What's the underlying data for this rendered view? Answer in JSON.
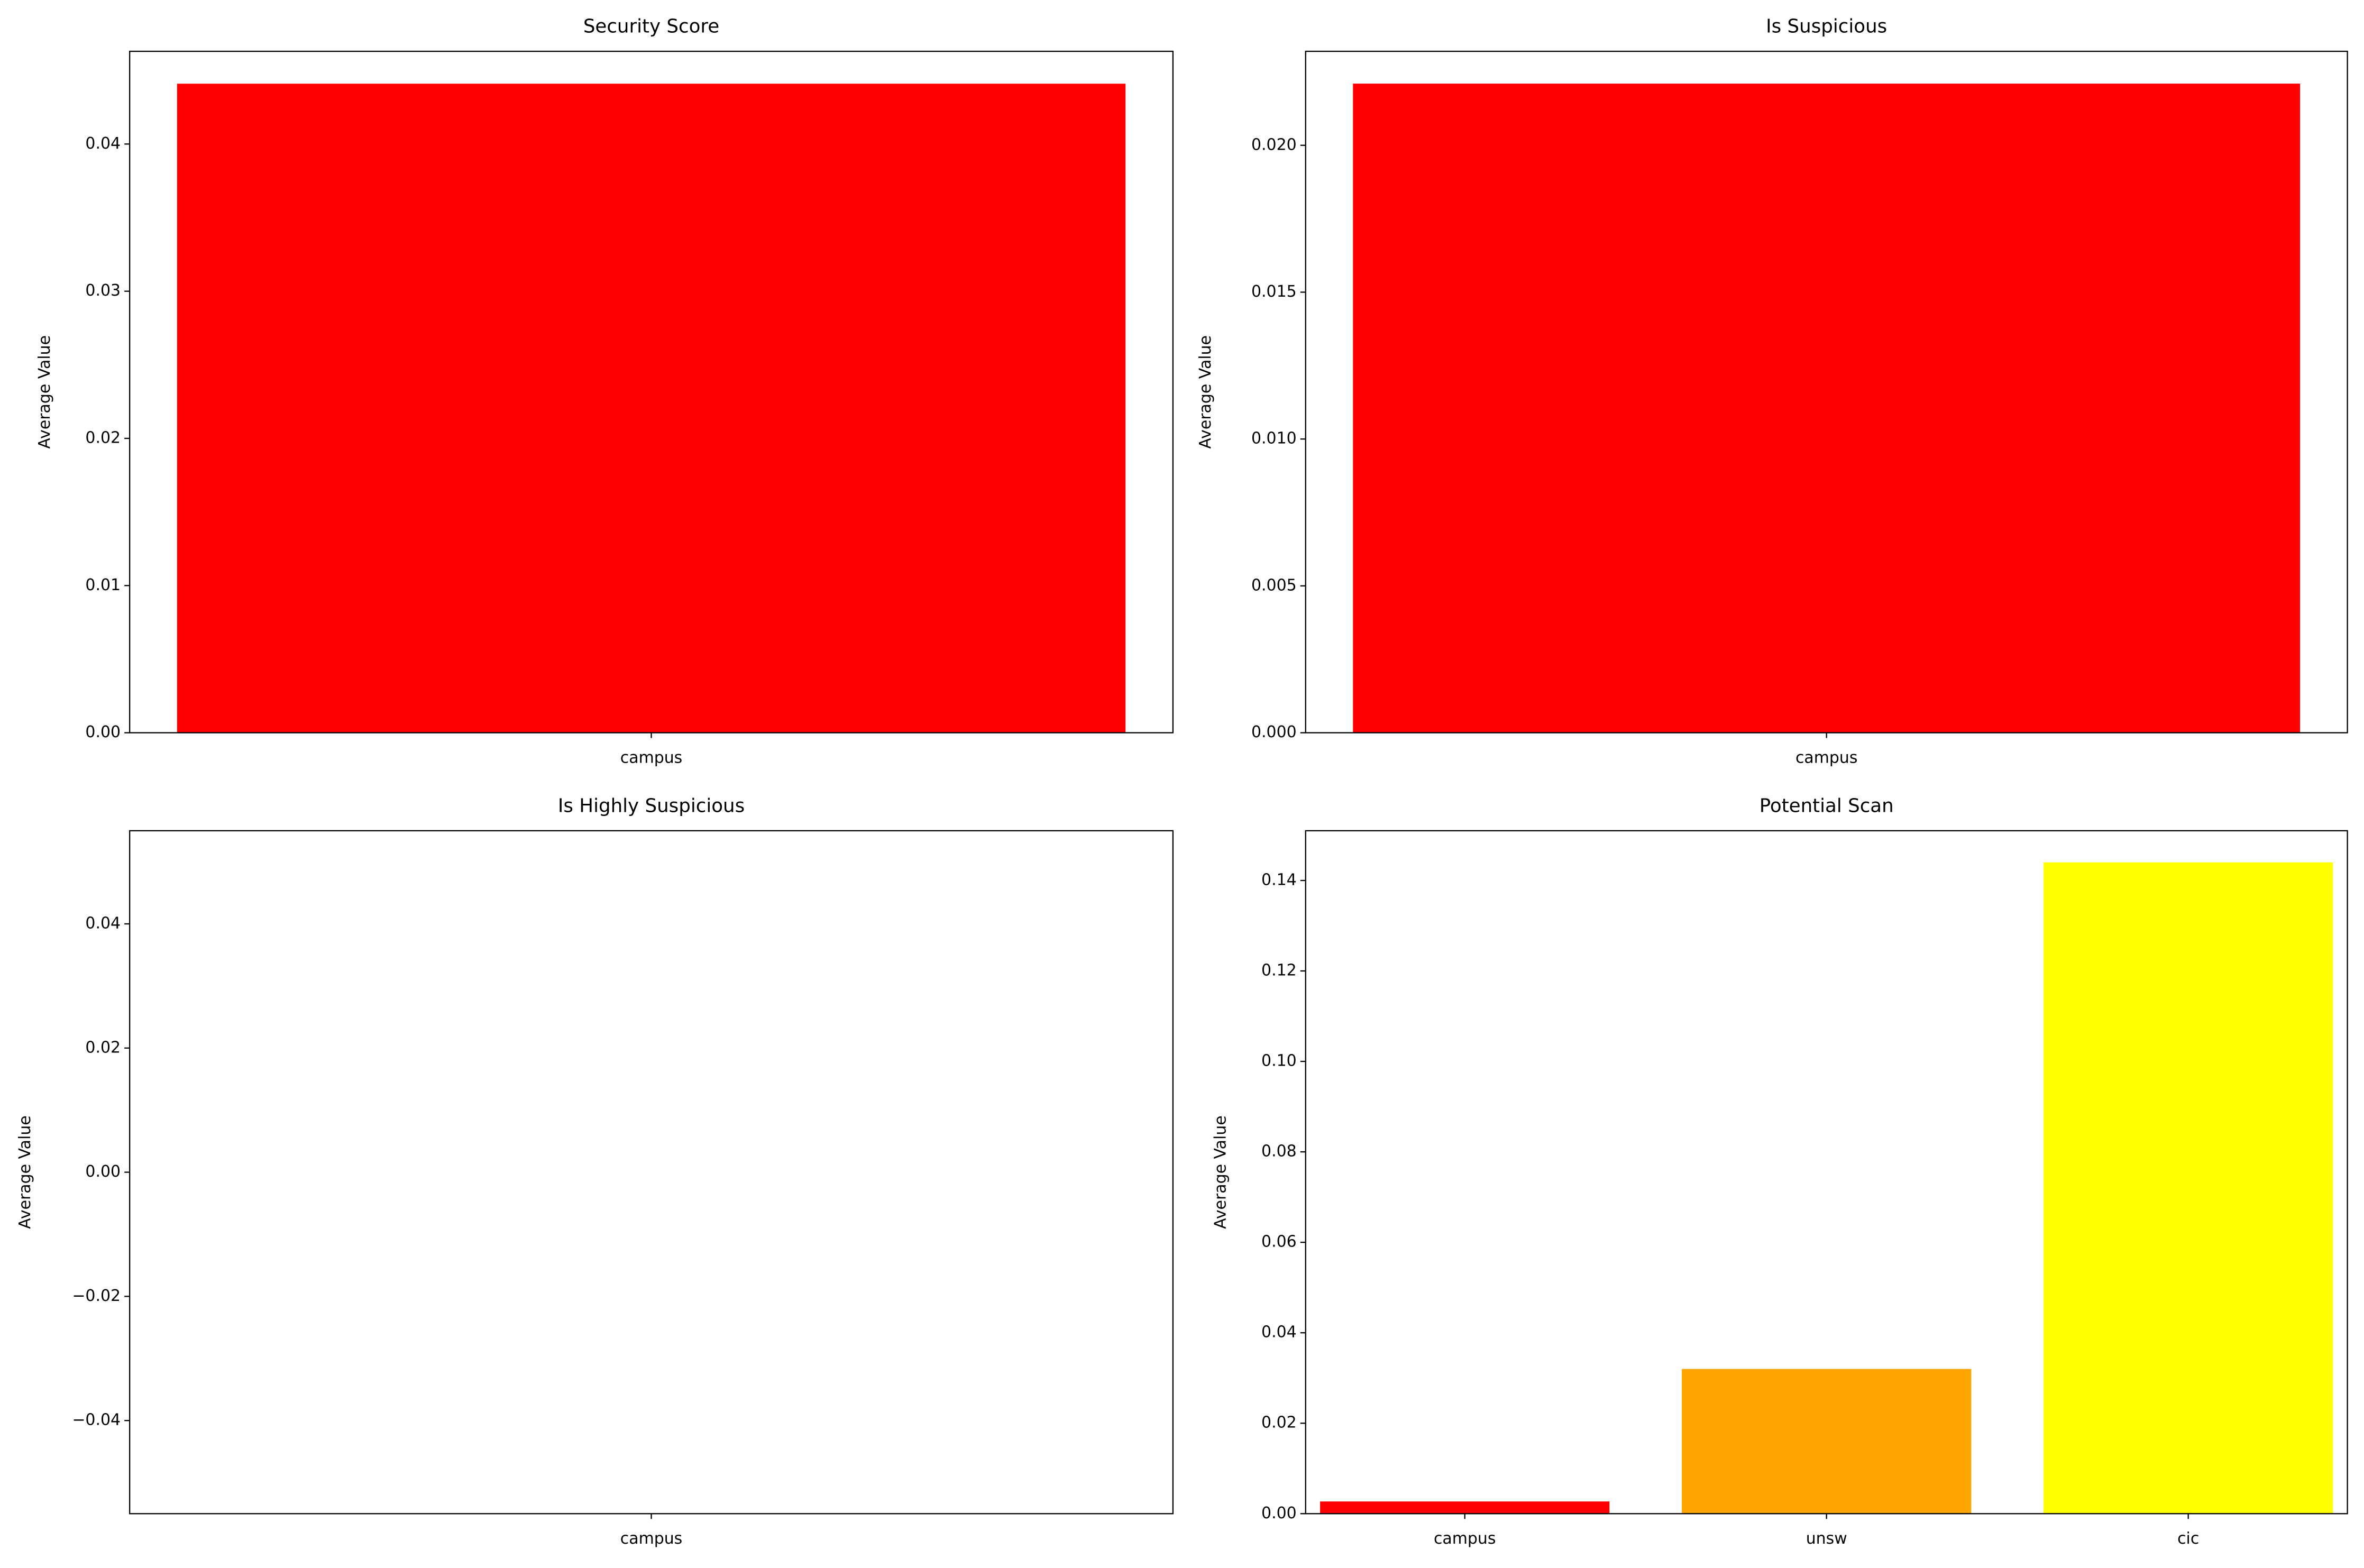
{
  "chart_data": [
    {
      "type": "bar",
      "title": "Security Score",
      "ylabel": "Average Value",
      "categories": [
        "campus"
      ],
      "values": [
        0.0441
      ],
      "colors": [
        "#ff0000"
      ],
      "ylim": [
        0,
        0.0463
      ],
      "yticks": [
        {
          "value": 0,
          "label": "0.00"
        },
        0.01,
        0.02,
        0.03,
        0.04
      ]
    },
    {
      "type": "bar",
      "title": "Is Suspicious",
      "ylabel": "Average Value",
      "categories": [
        "campus"
      ],
      "values": [
        0.0221
      ],
      "colors": [
        "#ff0000"
      ],
      "ylim": [
        0,
        0.0232
      ],
      "yticks": [
        {
          "value": 0,
          "label": "0.000"
        },
        0.005,
        {
          "value": 0.01,
          "label": "0.010"
        },
        0.015,
        {
          "value": 0.02,
          "label": "0.020"
        }
      ]
    },
    {
      "type": "bar",
      "title": "Is Highly Suspicious",
      "ylabel": "Average Value",
      "categories": [
        "campus"
      ],
      "values": [
        0
      ],
      "colors": [
        "#ff0000"
      ],
      "ylim": [
        -0.055,
        0.055
      ],
      "yticks": [
        {
          "value": -0.04,
          "label": "−0.04"
        },
        {
          "value": -0.02,
          "label": "−0.02"
        },
        {
          "value": 0,
          "label": "0.00"
        },
        0.02,
        0.04
      ]
    },
    {
      "type": "bar",
      "title": "Potential Scan",
      "ylabel": "Average Value",
      "categories": [
        "campus",
        "unsw",
        "cic"
      ],
      "values": [
        0.0027,
        0.032,
        0.144
      ],
      "colors": [
        "#ff0000",
        "#ffa500",
        "#ffff00"
      ],
      "ylim": [
        0,
        0.151
      ],
      "yticks": [
        {
          "value": 0,
          "label": "0.00"
        },
        0.02,
        0.04,
        0.06,
        0.08,
        {
          "value": 0.1,
          "label": "0.10"
        },
        0.12,
        0.14
      ]
    }
  ]
}
